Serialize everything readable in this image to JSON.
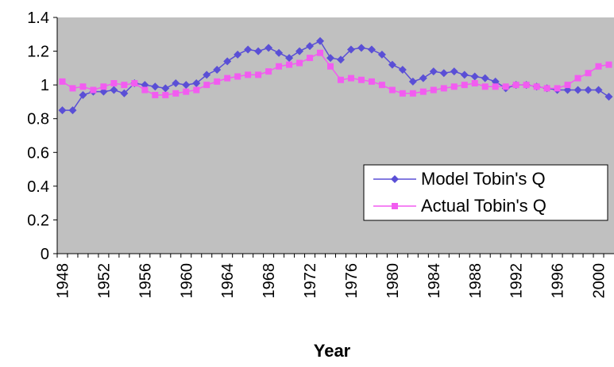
{
  "chart_data": {
    "type": "line",
    "x_label": "Year",
    "categories": [
      "1948",
      null,
      null,
      null,
      "1952",
      null,
      null,
      null,
      "1956",
      null,
      null,
      null,
      "1960",
      null,
      null,
      null,
      "1964",
      null,
      null,
      null,
      "1968",
      null,
      null,
      null,
      "1972",
      null,
      null,
      null,
      "1976",
      null,
      null,
      null,
      "1980",
      null,
      null,
      null,
      "1984",
      null,
      null,
      null,
      "1988",
      null,
      null,
      null,
      "1992",
      null,
      null,
      null,
      "1996",
      null,
      null,
      null,
      "2000",
      null
    ],
    "series": [
      {
        "name": "Model Tobin's Q",
        "color": "#5a4fd6",
        "marker": "diamond",
        "values": [
          0.85,
          0.85,
          0.94,
          0.96,
          0.96,
          0.97,
          0.95,
          1.01,
          1.0,
          0.99,
          0.98,
          1.01,
          1.0,
          1.01,
          1.06,
          1.09,
          1.14,
          1.18,
          1.21,
          1.2,
          1.22,
          1.19,
          1.16,
          1.2,
          1.23,
          1.26,
          1.16,
          1.15,
          1.21,
          1.22,
          1.21,
          1.18,
          1.12,
          1.09,
          1.02,
          1.04,
          1.08,
          1.07,
          1.08,
          1.06,
          1.05,
          1.04,
          1.02,
          0.98,
          1.0,
          1.0,
          0.99,
          0.98,
          0.97,
          0.97,
          0.97,
          0.97,
          0.97,
          0.93
        ]
      },
      {
        "name": "Actual Tobin's Q",
        "color": "#f25cf0",
        "marker": "square",
        "values": [
          1.02,
          0.98,
          0.99,
          0.97,
          0.99,
          1.01,
          1.0,
          1.01,
          0.97,
          0.94,
          0.94,
          0.95,
          0.96,
          0.97,
          1.0,
          1.02,
          1.04,
          1.05,
          1.06,
          1.06,
          1.08,
          1.11,
          1.12,
          1.13,
          1.16,
          1.19,
          1.11,
          1.03,
          1.04,
          1.03,
          1.02,
          1.0,
          0.97,
          0.95,
          0.95,
          0.96,
          0.97,
          0.98,
          0.99,
          1.0,
          1.01,
          0.99,
          0.99,
          0.99,
          1.0,
          1.0,
          0.99,
          0.98,
          0.98,
          1.0,
          1.04,
          1.07,
          1.11,
          1.12
        ]
      }
    ],
    "ylim": [
      0,
      1.4
    ],
    "yticks": [
      0,
      0.2,
      0.4,
      0.6,
      0.8,
      1,
      1.2,
      1.4
    ],
    "plot_background": "#c0c0c0",
    "legend": "lower right"
  }
}
